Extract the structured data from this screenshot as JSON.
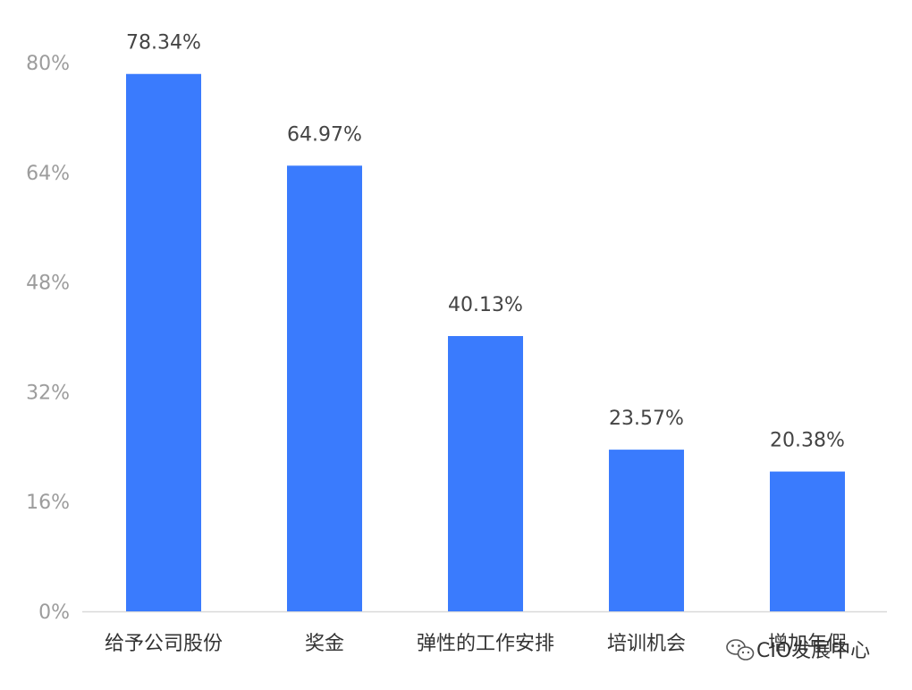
{
  "chart_data": {
    "type": "bar",
    "categories": [
      "给予公司股份",
      "奖金",
      "弹性的工作安排",
      "培训机会",
      "增加年假"
    ],
    "values": [
      78.34,
      64.97,
      40.13,
      23.57,
      20.38
    ],
    "data_labels": [
      "78.34%",
      "64.97%",
      "40.13%",
      "23.57%",
      "20.38%"
    ],
    "ylim": [
      0,
      80
    ],
    "yticks": [
      0,
      16,
      32,
      48,
      64,
      80
    ],
    "ytick_labels": [
      "0%",
      "16%",
      "32%",
      "48%",
      "64%",
      "80%"
    ],
    "bar_color": "#3a7bfd",
    "grid": false,
    "title": "",
    "xlabel": "",
    "ylabel": ""
  },
  "watermark": {
    "text": "CIO发展中心",
    "icon": "wechat-icon"
  }
}
